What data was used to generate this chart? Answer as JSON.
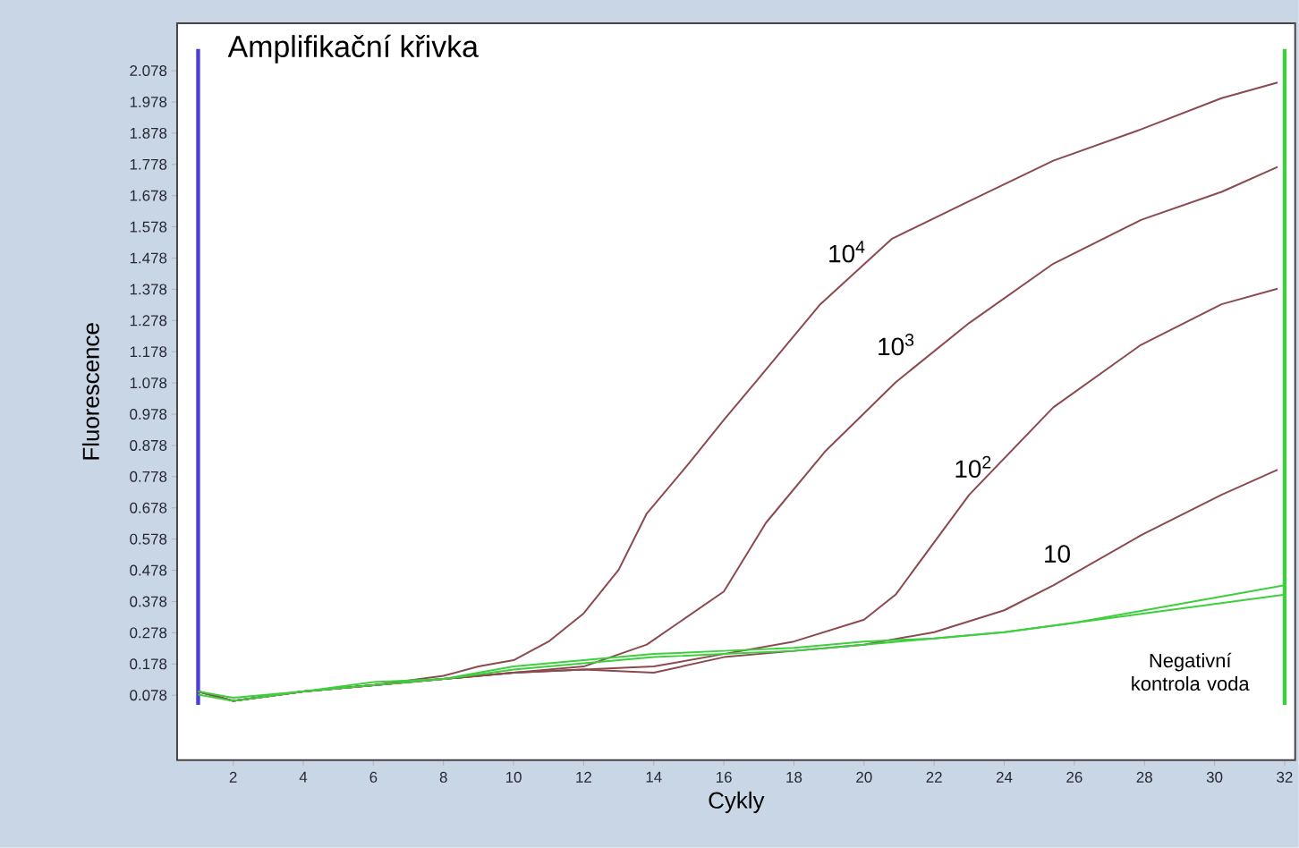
{
  "chart_data": {
    "type": "line",
    "title": "Amplifikační křivka",
    "xlabel": "Cykly",
    "ylabel": "Fluorescence",
    "xlim": [
      0.4,
      32.3
    ],
    "ylim": [
      -0.13,
      2.23
    ],
    "xticks": [
      2,
      4,
      6,
      8,
      10,
      12,
      14,
      16,
      18,
      20,
      22,
      24,
      26,
      28,
      30,
      32
    ],
    "yticks": [
      0.078,
      0.178,
      0.278,
      0.378,
      0.478,
      0.578,
      0.678,
      0.778,
      0.878,
      0.978,
      1.078,
      1.178,
      1.278,
      1.378,
      1.478,
      1.578,
      1.678,
      1.778,
      1.878,
      1.978,
      2.078
    ],
    "grid": false,
    "legend": false,
    "marker": "none",
    "line_style": "solid",
    "series": [
      {
        "name": "10$^{4}$",
        "color": "#8b4a4f",
        "x": [
          1,
          2,
          4,
          6,
          8,
          9,
          10,
          11,
          12,
          13,
          13.8,
          15,
          16,
          16.9,
          18.75,
          20.8,
          23,
          25.4,
          27.9,
          30.2,
          31.8
        ],
        "values": [
          0.09,
          0.06,
          0.09,
          0.11,
          0.14,
          0.17,
          0.19,
          0.25,
          0.34,
          0.48,
          0.66,
          0.82,
          0.96,
          1.08,
          1.33,
          1.54,
          1.66,
          1.79,
          1.89,
          1.99,
          2.04
        ]
      },
      {
        "name": "10$^{3}$",
        "color": "#8b4a4f",
        "x": [
          1,
          2,
          4,
          6,
          8,
          10,
          12,
          13.8,
          16,
          17.2,
          18.9,
          20.9,
          23,
          25.4,
          27.9,
          30.2,
          31.8
        ],
        "values": [
          0.09,
          0.06,
          0.09,
          0.11,
          0.13,
          0.15,
          0.17,
          0.24,
          0.41,
          0.63,
          0.86,
          1.08,
          1.27,
          1.46,
          1.6,
          1.69,
          1.77
        ]
      },
      {
        "name": "10$^{2}$",
        "color": "#8b4a4f",
        "x": [
          1,
          2,
          4,
          6,
          8,
          10,
          12,
          14,
          16,
          18,
          20,
          20.9,
          23,
          25.4,
          27.9,
          30.2,
          31.8
        ],
        "values": [
          0.09,
          0.06,
          0.09,
          0.11,
          0.13,
          0.15,
          0.16,
          0.17,
          0.21,
          0.25,
          0.32,
          0.4,
          0.72,
          1.0,
          1.2,
          1.33,
          1.38
        ]
      },
      {
        "name": "10",
        "color": "#8b4a4f",
        "x": [
          1,
          2,
          4,
          6,
          8,
          10,
          12,
          14,
          16,
          18,
          20,
          22,
          24,
          25.4,
          27.9,
          30.2,
          31.8
        ],
        "values": [
          0.09,
          0.06,
          0.09,
          0.11,
          0.13,
          0.15,
          0.16,
          0.15,
          0.2,
          0.22,
          0.24,
          0.28,
          0.35,
          0.43,
          0.59,
          0.72,
          0.8
        ]
      },
      {
        "name": "Negativní kontrola voda",
        "color": "#3ecf3e",
        "x": [
          1,
          2,
          4,
          6,
          8,
          10,
          12,
          14,
          16,
          18,
          20,
          22,
          24,
          26,
          28,
          30,
          32
        ],
        "values": [
          0.09,
          0.07,
          0.09,
          0.12,
          0.13,
          0.16,
          0.18,
          0.2,
          0.21,
          0.22,
          0.24,
          0.26,
          0.28,
          0.31,
          0.35,
          0.39,
          0.43
        ]
      },
      {
        "color": "#3ecf3e",
        "x": [
          1,
          2,
          4,
          6,
          8,
          10,
          12,
          14,
          16,
          18,
          20,
          22,
          24,
          26,
          28,
          30,
          32
        ],
        "values": [
          0.08,
          0.06,
          0.09,
          0.11,
          0.13,
          0.17,
          0.19,
          0.21,
          0.22,
          0.23,
          0.25,
          0.26,
          0.28,
          0.31,
          0.34,
          0.37,
          0.4
        ]
      }
    ],
    "ref_lines": [
      {
        "axis": "x",
        "value": 1,
        "color": "#4a3fd6"
      },
      {
        "axis": "x",
        "value": 32,
        "color": "#3ecf3e"
      }
    ]
  }
}
